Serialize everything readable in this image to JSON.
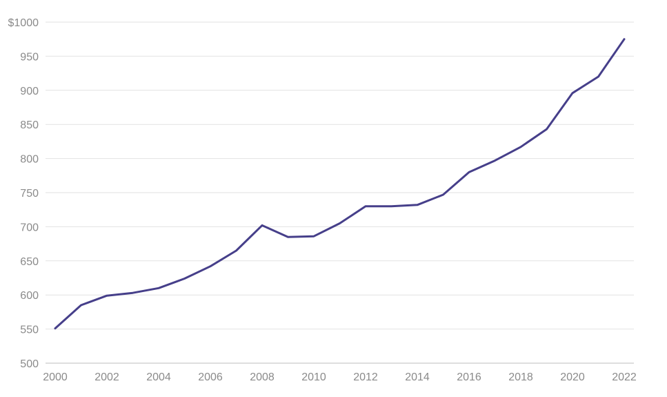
{
  "chart_data": {
    "type": "line",
    "title": "",
    "xlabel": "",
    "ylabel": "",
    "x": [
      2000,
      2001,
      2002,
      2003,
      2004,
      2005,
      2006,
      2007,
      2008,
      2009,
      2010,
      2011,
      2012,
      2013,
      2014,
      2015,
      2016,
      2017,
      2018,
      2019,
      2020,
      2021,
      2022
    ],
    "series": [
      {
        "color": "#463f8a",
        "values": [
          551,
          585,
          599,
          603,
          610,
          624,
          642,
          665,
          702,
          685,
          686,
          705,
          730,
          730,
          732,
          747,
          780,
          797,
          817,
          843,
          896,
          920,
          975
        ]
      }
    ],
    "xlim": [
      2000,
      2022
    ],
    "ylim": [
      500,
      1000
    ],
    "x_ticks": [
      2000,
      2002,
      2004,
      2006,
      2008,
      2010,
      2012,
      2014,
      2016,
      2018,
      2020,
      2022
    ],
    "x_tick_labels": [
      "2000",
      "2002",
      "2004",
      "2006",
      "2008",
      "2010",
      "2012",
      "2014",
      "2016",
      "2018",
      "2020",
      "2022"
    ],
    "y_ticks": [
      500,
      550,
      600,
      650,
      700,
      750,
      800,
      850,
      900,
      950,
      1000
    ],
    "y_tick_labels": [
      "500",
      "550",
      "600",
      "650",
      "700",
      "750",
      "800",
      "850",
      "900",
      "950",
      "$1000"
    ],
    "grid": true,
    "legend": "none"
  }
}
